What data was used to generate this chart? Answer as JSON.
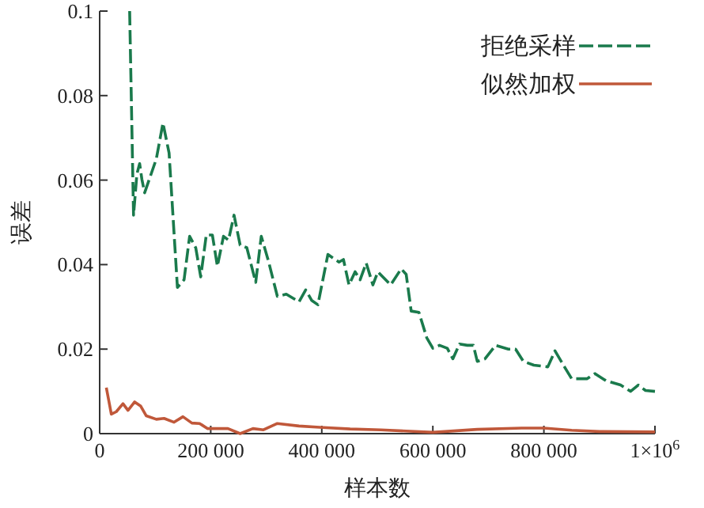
{
  "chart_data": {
    "type": "line",
    "xlabel": "样本数",
    "ylabel": "误差",
    "xlim": [
      0,
      1000000
    ],
    "ylim": [
      0,
      0.1
    ],
    "xticks": [
      0,
      {
        "value": 200000,
        "label": "200 000"
      },
      {
        "value": 400000,
        "label": "400 000"
      },
      {
        "value": 600000,
        "label": "600 000"
      },
      {
        "value": 800000,
        "label": "800 000"
      },
      {
        "value": 1000000,
        "label": "1×10$^{6}$"
      }
    ],
    "yticks": [
      0,
      0.02,
      0.04,
      0.06,
      0.08,
      0.1
    ],
    "legend": "top right",
    "series": [
      {
        "name": "拒绝采样",
        "color": "#1a7a4c",
        "line_style": "dashed",
        "x": [
          54000,
          61000,
          67000,
          72000,
          76000,
          81000,
          102000,
          114000,
          125000,
          140000,
          152000,
          162000,
          173000,
          182000,
          192000,
          203000,
          212000,
          223000,
          232000,
          242000,
          253000,
          265000,
          281000,
          291000,
          304000,
          320000,
          336000,
          359000,
          371000,
          382000,
          393000,
          411000,
          431000,
          439000,
          449000,
          460000,
          469000,
          480000,
          492000,
          501000,
          524000,
          543000,
          552000,
          561000,
          575000,
          589000,
          600000,
          612000,
          626000,
          636000,
          648000,
          662000,
          673000,
          680000,
          694000,
          713000,
          736000,
          749000,
          763000,
          782000,
          807000,
          820000,
          837000,
          850000,
          878000,
          892000,
          912000,
          938000,
          956000,
          970000,
          983000,
          1000000
        ],
        "values": [
          0.1,
          0.0517,
          0.0614,
          0.0639,
          0.0602,
          0.057,
          0.065,
          0.0735,
          0.0664,
          0.0346,
          0.0364,
          0.0467,
          0.044,
          0.0371,
          0.047,
          0.047,
          0.0396,
          0.0467,
          0.0458,
          0.0517,
          0.0446,
          0.044,
          0.0358,
          0.0467,
          0.0408,
          0.0325,
          0.033,
          0.0312,
          0.034,
          0.0315,
          0.0305,
          0.0424,
          0.0406,
          0.0412,
          0.0352,
          0.0383,
          0.0364,
          0.0404,
          0.0352,
          0.0383,
          0.0352,
          0.039,
          0.0377,
          0.029,
          0.0287,
          0.0227,
          0.0202,
          0.0209,
          0.0202,
          0.0177,
          0.0212,
          0.0209,
          0.0209,
          0.0171,
          0.0177,
          0.0209,
          0.02,
          0.02,
          0.0171,
          0.0162,
          0.0158,
          0.0196,
          0.0158,
          0.013,
          0.013,
          0.0142,
          0.0125,
          0.0115,
          0.01,
          0.0115,
          0.0102,
          0.01
        ]
      },
      {
        "name": "似然加权",
        "color": "#c0583a",
        "line_style": "solid",
        "x": [
          12000,
          21000,
          30000,
          42000,
          51000,
          63000,
          74000,
          84000,
          102000,
          116000,
          134000,
          150000,
          166000,
          180000,
          194000,
          231000,
          253000,
          276000,
          295000,
          320000,
          359000,
          396000,
          451000,
          506000,
          600000,
          680000,
          760000,
          800000,
          850000,
          900000,
          1000000
        ],
        "values": [
          0.0109,
          0.0046,
          0.0052,
          0.0071,
          0.0055,
          0.0075,
          0.0065,
          0.0042,
          0.0034,
          0.0036,
          0.0027,
          0.004,
          0.0025,
          0.0024,
          0.0012,
          0.0012,
          0.0,
          0.0012,
          0.0009,
          0.0024,
          0.0018,
          0.0015,
          0.0011,
          0.0009,
          0.0003,
          0.001,
          0.0013,
          0.0013,
          0.0008,
          0.0005,
          0.0004
        ]
      }
    ]
  }
}
